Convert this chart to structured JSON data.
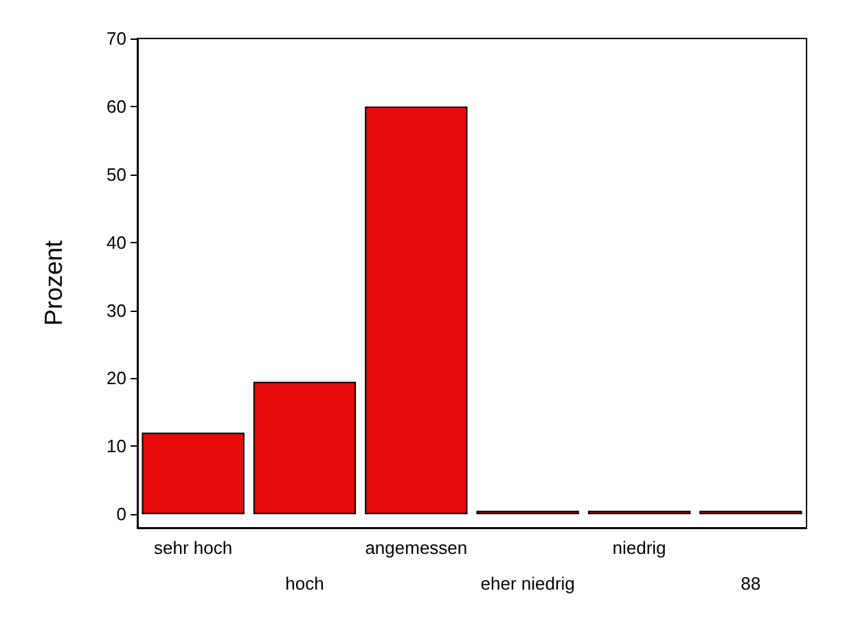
{
  "chart_data": {
    "type": "bar",
    "ylabel": "Prozent",
    "categories": [
      "sehr hoch",
      "hoch",
      "angemessen",
      "eher niedrig",
      "niedrig",
      "88"
    ],
    "values": [
      12,
      19.5,
      60,
      0.5,
      0.5,
      0.5
    ],
    "color": "#e80a0a",
    "ylim": [
      -2,
      70
    ],
    "yticks": [
      0,
      10,
      20,
      30,
      40,
      50,
      60,
      70
    ]
  }
}
